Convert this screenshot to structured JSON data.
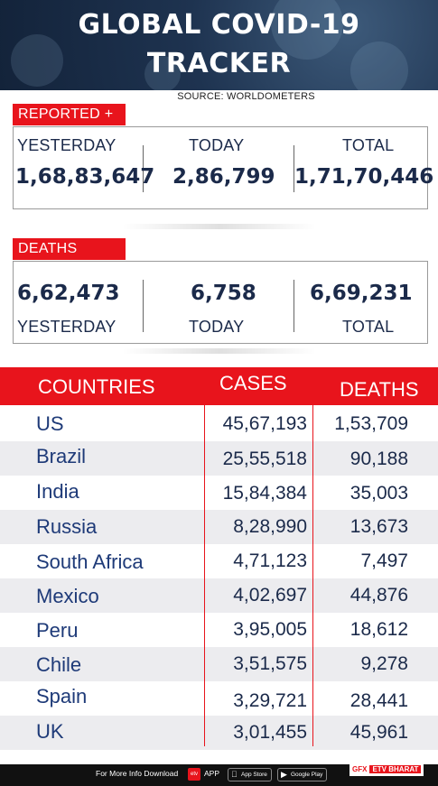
{
  "header": {
    "title_line1": "GLOBAL COVID-19",
    "title_line2": "TRACKER",
    "source": "SOURCE: WORLDOMETERS"
  },
  "reported": {
    "tag": "REPORTED +",
    "yesterday_label": "YESTERDAY",
    "today_label": "TODAY",
    "total_label": "TOTAL",
    "yesterday": "1,68,83,647",
    "today": "2,86,799",
    "total": "1,71,70,446"
  },
  "deaths": {
    "tag": "DEATHS",
    "yesterday": "6,62,473",
    "today": "6,758",
    "total": "6,69,231",
    "yesterday_label": "YESTERDAY",
    "today_label": "TODAY",
    "total_label": "TOTAL"
  },
  "table": {
    "headers": {
      "countries": "COUNTRIES",
      "cases": "CASES",
      "deaths": "DEATHS"
    },
    "rows": [
      {
        "country": "US",
        "cases": "45,67,193",
        "deaths": "1,53,709"
      },
      {
        "country": "Brazil",
        "cases": "25,55,518",
        "deaths": "90,188"
      },
      {
        "country": "India",
        "cases": "15,84,384",
        "deaths": "35,003"
      },
      {
        "country": "Russia",
        "cases": "8,28,990",
        "deaths": "13,673"
      },
      {
        "country": "South Africa",
        "cases": "4,71,123",
        "deaths": "7,497"
      },
      {
        "country": "Mexico",
        "cases": "4,02,697",
        "deaths": "44,876"
      },
      {
        "country": "Peru",
        "cases": "3,95,005",
        "deaths": "18,612"
      },
      {
        "country": "Chile",
        "cases": "3,51,575",
        "deaths": "9,278"
      },
      {
        "country": "Spain",
        "cases": "3,29,721",
        "deaths": "28,441"
      },
      {
        "country": "UK",
        "cases": "3,01,455",
        "deaths": "45,961"
      }
    ]
  },
  "footer": {
    "more_info": "For More Info Download",
    "etv_icon": "etv",
    "app": "APP",
    "app_store": "App Store",
    "google_play": "Google Play",
    "gfx": "GFX",
    "brand": "ETV BHARAT"
  },
  "colors": {
    "accent_red": "#e8141c",
    "navy_text": "#1b2a4a",
    "country_blue": "#1e3a78",
    "row_shade": "#ececef"
  }
}
